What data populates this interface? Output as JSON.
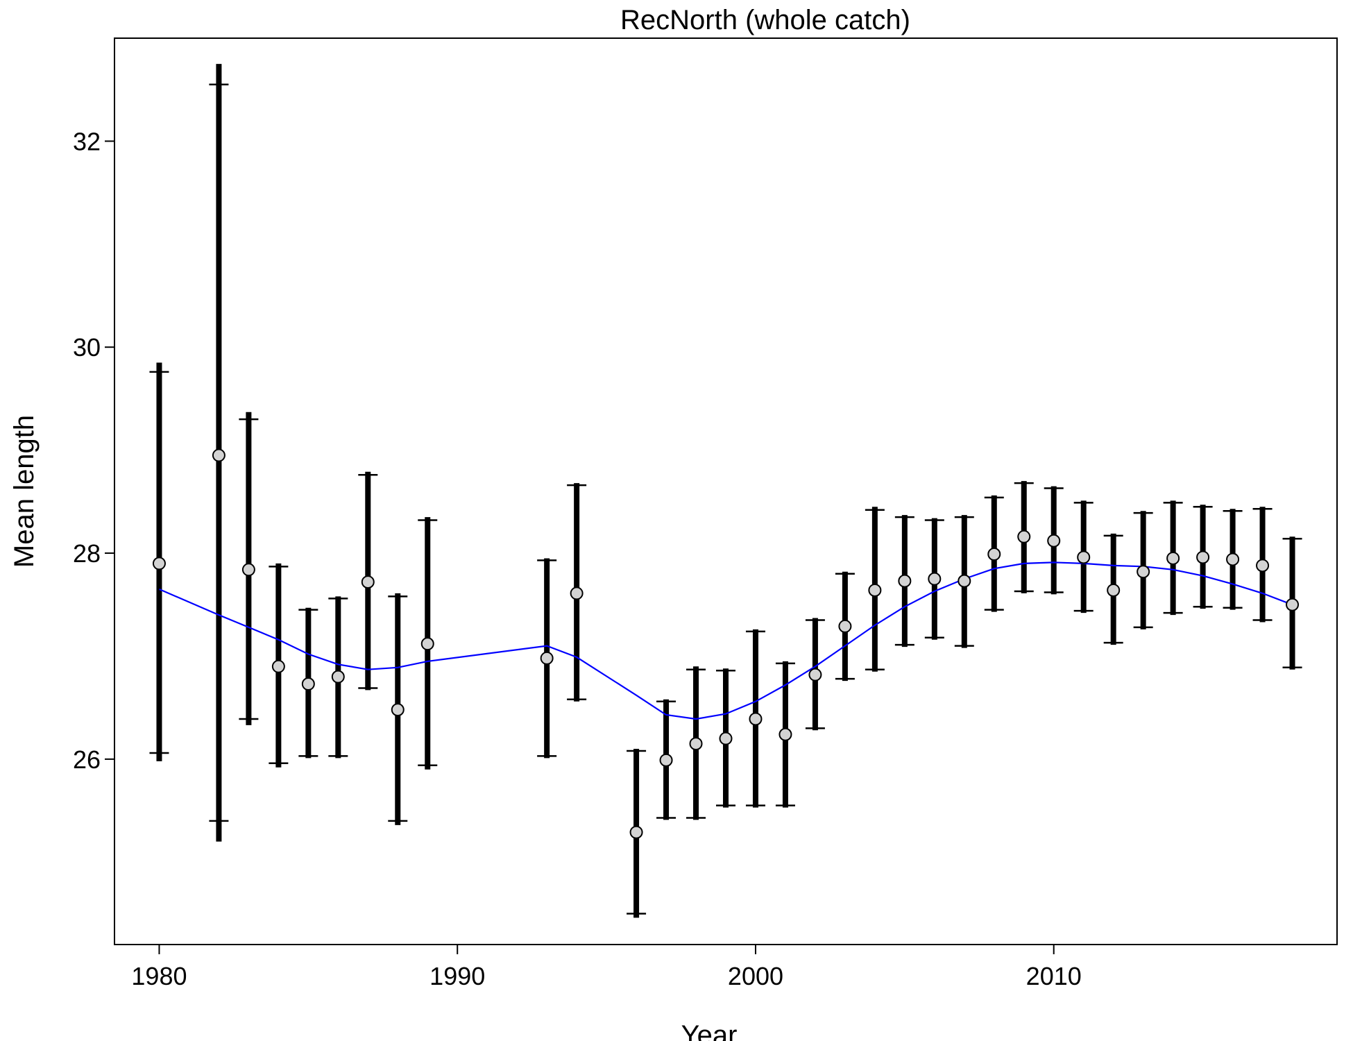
{
  "chart_data": {
    "type": "scatter",
    "title": "RecNorth (whole catch)",
    "xlabel": "Year",
    "ylabel": "Mean length",
    "xlim": [
      1978.5,
      2019.5
    ],
    "ylim": [
      24.2,
      33.0
    ],
    "x_ticks": [
      "1980",
      "1990",
      "2000",
      "2010"
    ],
    "x_tick_values": [
      1980,
      1990,
      2000,
      2010
    ],
    "y_ticks": [
      "26",
      "28",
      "30",
      "32"
    ],
    "y_tick_values": [
      26,
      28,
      30,
      32
    ],
    "grid": false,
    "colors": {
      "points": "#d3d3d3",
      "errorbars": "#000000",
      "fit": "#0000ff"
    },
    "series": [
      {
        "type": "errorbar-points",
        "points": [
          {
            "x": 1980,
            "y": 27.9,
            "lo95": 26.06,
            "hi95": 29.76,
            "lo_ext": 25.98,
            "hi_ext": 29.85
          },
          {
            "x": 1982,
            "y": 28.95,
            "lo95": 25.4,
            "hi95": 32.55,
            "lo_ext": 25.2,
            "hi_ext": 32.75
          },
          {
            "x": 1983,
            "y": 27.84,
            "lo95": 26.39,
            "hi95": 29.3,
            "lo_ext": 26.33,
            "hi_ext": 29.37
          },
          {
            "x": 1984,
            "y": 26.9,
            "lo95": 25.96,
            "hi95": 27.87,
            "lo_ext": 25.92,
            "hi_ext": 27.9
          },
          {
            "x": 1985,
            "y": 26.73,
            "lo95": 26.03,
            "hi95": 27.45,
            "lo_ext": 26.01,
            "hi_ext": 27.47
          },
          {
            "x": 1986,
            "y": 26.8,
            "lo95": 26.03,
            "hi95": 27.56,
            "lo_ext": 26.01,
            "hi_ext": 27.58
          },
          {
            "x": 1987,
            "y": 27.72,
            "lo95": 26.69,
            "hi95": 28.76,
            "lo_ext": 26.67,
            "hi_ext": 28.79
          },
          {
            "x": 1988,
            "y": 26.48,
            "lo95": 25.4,
            "hi95": 27.58,
            "lo_ext": 25.36,
            "hi_ext": 27.61
          },
          {
            "x": 1989,
            "y": 27.12,
            "lo95": 25.94,
            "hi95": 28.32,
            "lo_ext": 25.9,
            "hi_ext": 28.35
          },
          {
            "x": 1993,
            "y": 26.98,
            "lo95": 26.03,
            "hi95": 27.93,
            "lo_ext": 26.01,
            "hi_ext": 27.95
          },
          {
            "x": 1994,
            "y": 27.61,
            "lo95": 26.58,
            "hi95": 28.66,
            "lo_ext": 26.56,
            "hi_ext": 28.68
          },
          {
            "x": 1996,
            "y": 25.29,
            "lo95": 24.5,
            "hi95": 26.08,
            "lo_ext": 24.46,
            "hi_ext": 26.1
          },
          {
            "x": 1997,
            "y": 25.99,
            "lo95": 25.43,
            "hi95": 26.56,
            "lo_ext": 25.41,
            "hi_ext": 26.58
          },
          {
            "x": 1998,
            "y": 26.15,
            "lo95": 25.43,
            "hi95": 26.87,
            "lo_ext": 25.41,
            "hi_ext": 26.9
          },
          {
            "x": 1999,
            "y": 26.2,
            "lo95": 25.55,
            "hi95": 26.86,
            "lo_ext": 25.53,
            "hi_ext": 26.88
          },
          {
            "x": 2000,
            "y": 26.39,
            "lo95": 25.55,
            "hi95": 27.24,
            "lo_ext": 25.53,
            "hi_ext": 27.26
          },
          {
            "x": 2001,
            "y": 26.24,
            "lo95": 25.55,
            "hi95": 26.93,
            "lo_ext": 25.53,
            "hi_ext": 26.95
          },
          {
            "x": 2002,
            "y": 26.82,
            "lo95": 26.3,
            "hi95": 27.35,
            "lo_ext": 26.28,
            "hi_ext": 27.37
          },
          {
            "x": 2003,
            "y": 27.29,
            "lo95": 26.78,
            "hi95": 27.8,
            "lo_ext": 26.76,
            "hi_ext": 27.82
          },
          {
            "x": 2004,
            "y": 27.64,
            "lo95": 26.87,
            "hi95": 28.42,
            "lo_ext": 26.85,
            "hi_ext": 28.45
          },
          {
            "x": 2005,
            "y": 27.73,
            "lo95": 27.11,
            "hi95": 28.35,
            "lo_ext": 27.09,
            "hi_ext": 28.37
          },
          {
            "x": 2006,
            "y": 27.75,
            "lo95": 27.18,
            "hi95": 28.32,
            "lo_ext": 27.16,
            "hi_ext": 28.34
          },
          {
            "x": 2007,
            "y": 27.73,
            "lo95": 27.1,
            "hi95": 28.35,
            "lo_ext": 27.08,
            "hi_ext": 28.37
          },
          {
            "x": 2008,
            "y": 27.99,
            "lo95": 27.45,
            "hi95": 28.54,
            "lo_ext": 27.43,
            "hi_ext": 28.56
          },
          {
            "x": 2009,
            "y": 28.16,
            "lo95": 27.63,
            "hi95": 28.68,
            "lo_ext": 27.61,
            "hi_ext": 28.7
          },
          {
            "x": 2010,
            "y": 28.12,
            "lo95": 27.62,
            "hi95": 28.63,
            "lo_ext": 27.6,
            "hi_ext": 28.65
          },
          {
            "x": 2011,
            "y": 27.96,
            "lo95": 27.44,
            "hi95": 28.49,
            "lo_ext": 27.42,
            "hi_ext": 28.51
          },
          {
            "x": 2012,
            "y": 27.64,
            "lo95": 27.13,
            "hi95": 28.17,
            "lo_ext": 27.11,
            "hi_ext": 28.19
          },
          {
            "x": 2013,
            "y": 27.82,
            "lo95": 27.28,
            "hi95": 28.39,
            "lo_ext": 27.26,
            "hi_ext": 28.41
          },
          {
            "x": 2014,
            "y": 27.95,
            "lo95": 27.42,
            "hi95": 28.49,
            "lo_ext": 27.4,
            "hi_ext": 28.51
          },
          {
            "x": 2015,
            "y": 27.96,
            "lo95": 27.48,
            "hi95": 28.45,
            "lo_ext": 27.46,
            "hi_ext": 28.47
          },
          {
            "x": 2016,
            "y": 27.94,
            "lo95": 27.47,
            "hi95": 28.41,
            "lo_ext": 27.45,
            "hi_ext": 28.43
          },
          {
            "x": 2017,
            "y": 27.88,
            "lo95": 27.35,
            "hi95": 28.43,
            "lo_ext": 27.33,
            "hi_ext": 28.45
          },
          {
            "x": 2018,
            "y": 27.5,
            "lo95": 26.89,
            "hi95": 28.14,
            "lo_ext": 26.87,
            "hi_ext": 28.16
          }
        ]
      },
      {
        "type": "line",
        "x": [
          1980,
          1982,
          1983,
          1984,
          1985,
          1986,
          1987,
          1988,
          1989,
          1993,
          1994,
          1996,
          1997,
          1998,
          1999,
          2000,
          2001,
          2002,
          2003,
          2004,
          2005,
          2006,
          2007,
          2008,
          2009,
          2010,
          2011,
          2012,
          2013,
          2014,
          2015,
          2016,
          2017,
          2018
        ],
        "y": [
          27.65,
          27.4,
          27.28,
          27.16,
          27.02,
          26.92,
          26.87,
          26.89,
          26.95,
          27.1,
          26.99,
          26.62,
          26.43,
          26.39,
          26.44,
          26.56,
          26.72,
          26.9,
          27.1,
          27.3,
          27.48,
          27.63,
          27.75,
          27.85,
          27.9,
          27.91,
          27.9,
          27.88,
          27.87,
          27.84,
          27.78,
          27.7,
          27.61,
          27.5
        ]
      }
    ]
  }
}
